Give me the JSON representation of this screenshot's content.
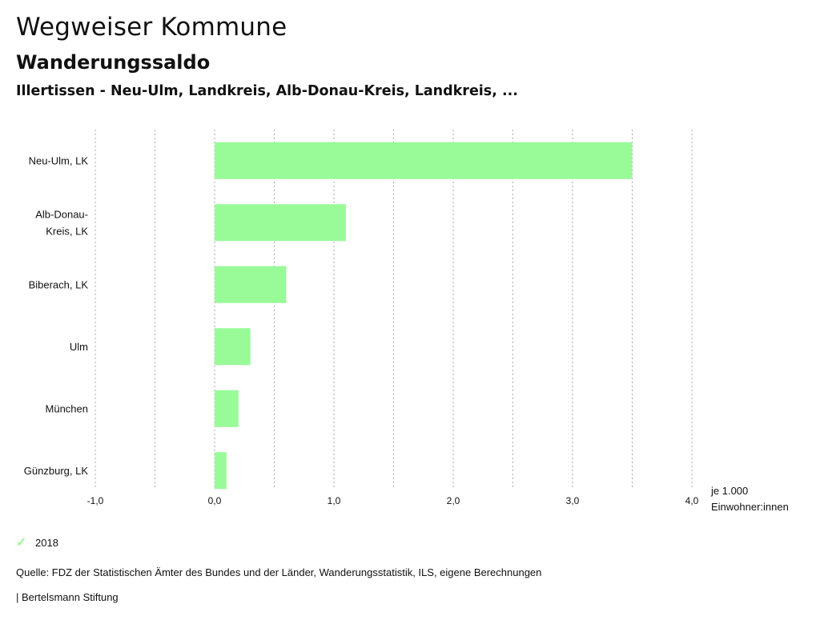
{
  "header": {
    "app_title": "Wegweiser Kommune",
    "subtitle": "Wanderungssaldo",
    "regions": "Illertissen - Neu-Ulm, Landkreis, Alb-Donau-Kreis, Landkreis, ..."
  },
  "chart_data": {
    "type": "bar",
    "orientation": "horizontal",
    "categories": [
      [
        "Neu-Ulm, LK"
      ],
      [
        "Alb-Donau-",
        "Kreis, LK"
      ],
      [
        "Biberach, LK"
      ],
      [
        "Ulm"
      ],
      [
        "München"
      ],
      [
        "Günzburg, LK"
      ]
    ],
    "series": [
      {
        "name": "2018",
        "color": "#98fb98",
        "values": [
          3.5,
          1.1,
          0.6,
          0.3,
          0.2,
          0.1
        ]
      }
    ],
    "xlim": [
      -1.0,
      4.0
    ],
    "ticks": [
      -1.0,
      0.0,
      1.0,
      2.0,
      3.0,
      4.0
    ],
    "tick_labels": [
      "-1,0",
      "0,0",
      "1,0",
      "2,0",
      "3,0",
      "4,0"
    ],
    "unit_label": [
      "je 1.000",
      "Einwohner:innen"
    ],
    "grid": true,
    "legend_position": "bottom-left"
  },
  "legend": {
    "label": "2018"
  },
  "footer": {
    "source": "Quelle: FDZ der Statistischen Ämter des Bundes und der Länder, Wanderungsstatistik, ILS, eigene Berechnungen",
    "brand": "| Bertelsmann Stiftung"
  }
}
